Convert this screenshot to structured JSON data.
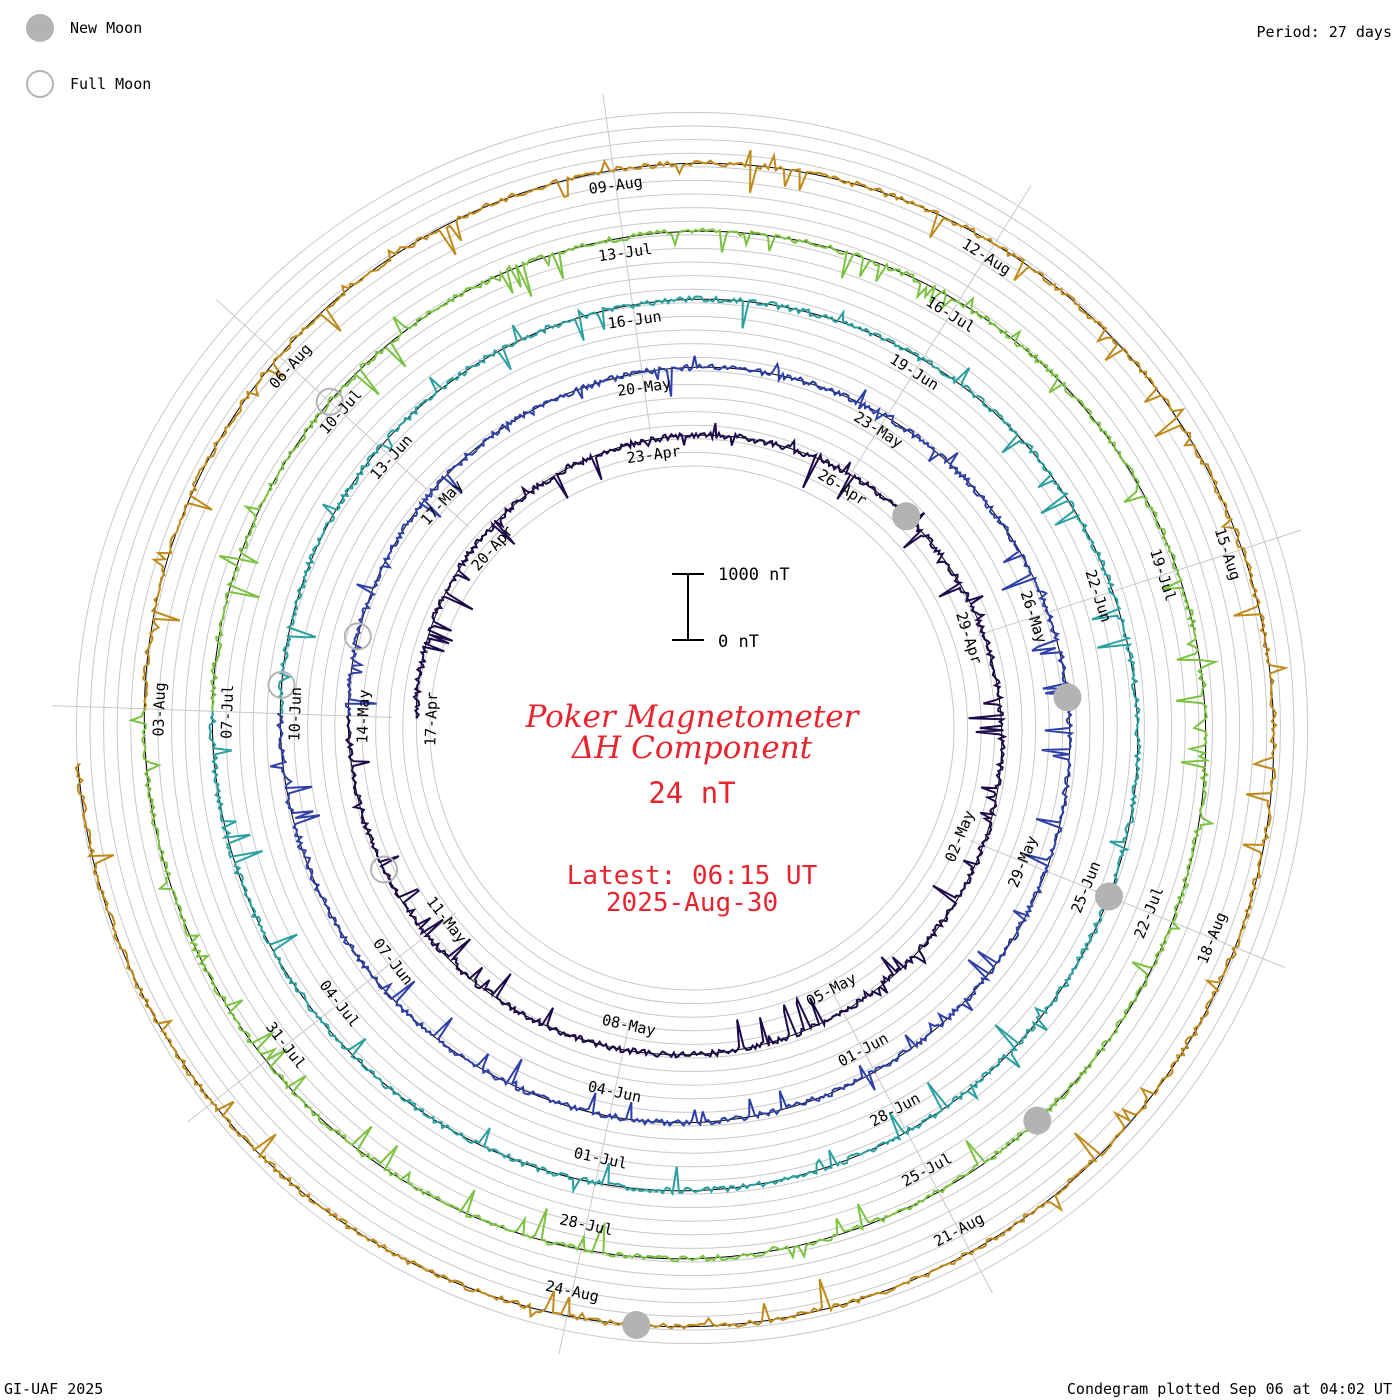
{
  "legend": {
    "new_moon_label": "New Moon",
    "full_moon_label": "Full Moon",
    "new_moon_color": "#b3b3b3"
  },
  "header": {
    "period": "Period: 27 days"
  },
  "footer": {
    "credit": "GI-UAF 2025",
    "plotted": "Condegram plotted Sep 06 at 04:02 UT"
  },
  "center": {
    "title_line1": "Poker Magnetometer",
    "title_line2": "ΔH Component",
    "value": "24 nT",
    "latest_label": "Latest: 06:15 UT",
    "latest_date": "2025-Aug-30",
    "scale_top": "1000 nT",
    "scale_bottom": "0 nT",
    "text_color": "#e8252e"
  },
  "chart_data": {
    "type": "line",
    "title": "Poker Magnetometer ΔH Component",
    "subtitle": "24 nT",
    "period_days": 27,
    "units": "nT",
    "scale_bar_nT": [
      0,
      1000
    ],
    "latest": "06:15 UT 2025-Aug-30",
    "rings": [
      {
        "name": "17-Apr to 14-May",
        "color": "#1c0a4a",
        "date_labels": [
          "17-Apr",
          "20-Apr",
          "23-Apr",
          "26-Apr",
          "29-Apr",
          "02-May",
          "05-May",
          "08-May",
          "11-May"
        ]
      },
      {
        "name": "14-May to 10-Jun",
        "color": "#2f3fa8",
        "date_labels": [
          "14-May",
          "17-May",
          "20-May",
          "23-May",
          "26-May",
          "29-May",
          "01-Jun",
          "04-Jun",
          "07-Jun"
        ]
      },
      {
        "name": "10-Jun to 07-Jul",
        "color": "#2aa0a0",
        "date_labels": [
          "10-Jun",
          "13-Jun",
          "16-Jun",
          "19-Jun",
          "22-Jun",
          "25-Jun",
          "28-Jun",
          "01-Jul",
          "04-Jul"
        ]
      },
      {
        "name": "07-Jul to 03-Aug",
        "color": "#7cc242",
        "date_labels": [
          "07-Jul",
          "10-Jul",
          "13-Jul",
          "16-Jul",
          "19-Jul",
          "22-Jul",
          "25-Jul",
          "28-Jul",
          "31-Jul"
        ]
      },
      {
        "name": "03-Aug to 30-Aug",
        "color": "#c08a1a",
        "date_labels": [
          "03-Aug",
          "06-Aug",
          "09-Aug",
          "12-Aug",
          "15-Aug",
          "18-Aug",
          "21-Aug",
          "24-Aug"
        ]
      }
    ],
    "new_moon_dates": [
      "27-Apr",
      "27-May",
      "25-Jun",
      "24-Jul",
      "23-Aug"
    ],
    "full_moon_dates": [
      "12-May",
      "11-Jun",
      "10-Jul",
      "09-Aug"
    ]
  }
}
